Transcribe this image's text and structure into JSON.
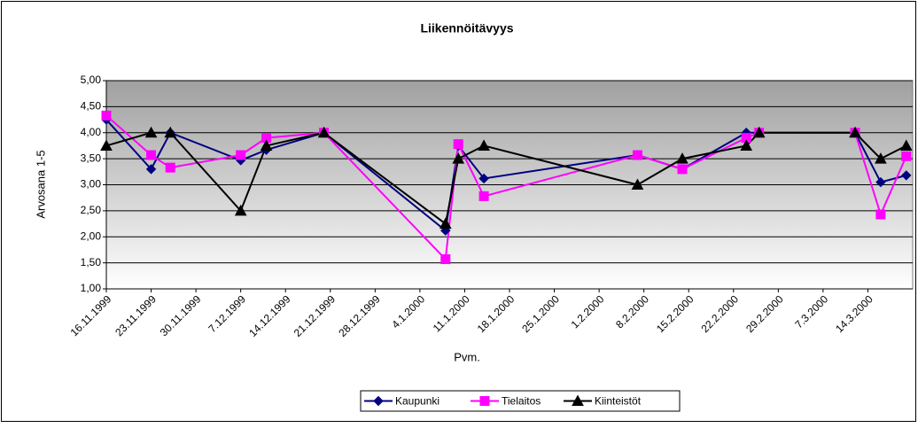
{
  "chart_data": {
    "type": "line",
    "title": "Liikennöitävyys",
    "xlabel": "Pvm.",
    "ylabel": "Arvosana 1-5",
    "x": [
      "16.11.1999",
      "23.11.1999",
      "26.11.1999",
      "7.12.1999",
      "11.12.1999",
      "20.12.1999",
      "8.1.2000",
      "10.1.2000",
      "14.1.2000",
      "7.2.2000",
      "14.2.2000",
      "24.2.2000",
      "26.2.2000",
      "12.3.2000",
      "16.3.2000",
      "20.3.2000"
    ],
    "series": [
      {
        "name": "Kaupunki",
        "color": "#000080",
        "marker": "diamond",
        "values": [
          4.25,
          3.3,
          4.0,
          3.47,
          3.67,
          4.0,
          2.12,
          3.75,
          3.12,
          3.57,
          3.3,
          4.0,
          4.0,
          4.0,
          3.05,
          3.18
        ]
      },
      {
        "name": "Tielaitos",
        "color": "#ff00ff",
        "marker": "square",
        "values": [
          4.33,
          3.57,
          3.33,
          3.57,
          3.9,
          4.0,
          1.57,
          3.78,
          2.78,
          3.57,
          3.3,
          3.9,
          4.0,
          4.0,
          2.43,
          3.55
        ]
      },
      {
        "name": "Kiinteistöt",
        "color": "#000000",
        "marker": "triangle",
        "values": [
          3.75,
          4.0,
          4.0,
          2.5,
          3.75,
          4.0,
          2.25,
          3.5,
          3.75,
          3.0,
          3.5,
          3.75,
          4.0,
          4.0,
          3.5,
          3.75
        ]
      }
    ],
    "xlim": [
      "16.11.1999",
      "21.3.2000"
    ],
    "xticks": [
      "16.11.1999",
      "23.11.1999",
      "30.11.1999",
      "7.12.1999",
      "14.12.1999",
      "21.12.1999",
      "28.12.1999",
      "4.1.2000",
      "11.1.2000",
      "18.1.2000",
      "25.1.2000",
      "1.2.2000",
      "8.2.2000",
      "15.2.2000",
      "22.2.2000",
      "29.2.2000",
      "7.3.2000",
      "14.3.2000"
    ],
    "ylim": [
      1,
      5
    ],
    "yticks": [
      {
        "value": 1,
        "label": "1,00"
      },
      {
        "value": 1.5,
        "label": "1,50"
      },
      {
        "value": 2,
        "label": "2,00"
      },
      {
        "value": 2.5,
        "label": "2,50"
      },
      {
        "value": 3,
        "label": "3,00"
      },
      {
        "value": 3.5,
        "label": "3,50"
      },
      {
        "value": 4,
        "label": "4,00"
      },
      {
        "value": 4.5,
        "label": "4,50"
      },
      {
        "value": 5,
        "label": "5,00"
      }
    ],
    "grid": true,
    "legend": "bottom"
  }
}
